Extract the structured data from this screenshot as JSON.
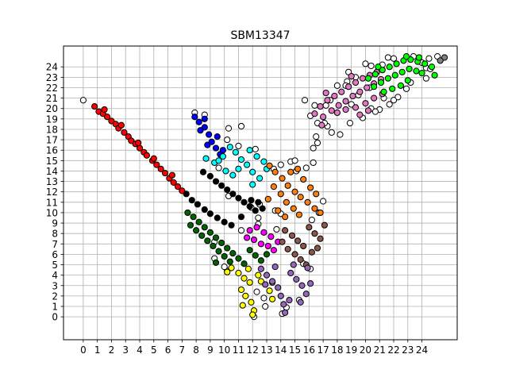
{
  "chart_data": {
    "type": "scatter",
    "title": "SBM13347",
    "xlabel": "",
    "ylabel": "",
    "xlim": [
      -1.4,
      26.5
    ],
    "ylim": [
      -2.2,
      26.0
    ],
    "x_ticks": [
      0,
      1,
      2,
      3,
      4,
      5,
      6,
      7,
      8,
      9,
      10,
      11,
      12,
      13,
      14,
      15,
      16,
      17,
      18,
      19,
      20,
      21,
      22,
      23,
      24
    ],
    "y_ticks": [
      0,
      1,
      2,
      3,
      4,
      5,
      6,
      7,
      8,
      9,
      10,
      11,
      12,
      13,
      14,
      15,
      16,
      17,
      18,
      19,
      20,
      21,
      22,
      23,
      24
    ],
    "grid": true,
    "legend": "none",
    "marker": "circle",
    "marker_edge_color": "#000000",
    "unassigned_color": "#ffffff",
    "clusters": [
      {
        "color": "#ff0000",
        "points": [
          [
            0.8,
            20.2
          ],
          [
            1.1,
            19.7
          ],
          [
            1.4,
            19.5
          ],
          [
            1.7,
            19.2
          ],
          [
            2.0,
            18.8
          ],
          [
            2.3,
            18.5
          ],
          [
            2.5,
            18.1
          ],
          [
            2.9,
            17.7
          ],
          [
            3.2,
            17.3
          ],
          [
            3.4,
            16.9
          ],
          [
            3.7,
            16.6
          ],
          [
            4.0,
            16.2
          ],
          [
            4.3,
            15.8
          ],
          [
            4.5,
            15.5
          ],
          [
            4.9,
            15.0
          ],
          [
            5.2,
            14.6
          ],
          [
            5.5,
            14.2
          ],
          [
            5.8,
            13.8
          ],
          [
            6.1,
            13.3
          ],
          [
            6.4,
            12.9
          ],
          [
            6.7,
            12.5
          ],
          [
            7.0,
            12.1
          ],
          [
            1.5,
            19.9
          ],
          [
            2.7,
            18.4
          ],
          [
            3.9,
            16.7
          ],
          [
            5.0,
            15.2
          ],
          [
            6.3,
            13.6
          ]
        ]
      },
      {
        "color": "#0000ff",
        "points": [
          [
            7.9,
            19.2
          ],
          [
            8.2,
            18.7
          ],
          [
            8.6,
            18.2
          ],
          [
            8.9,
            17.5
          ],
          [
            8.3,
            17.9
          ],
          [
            9.1,
            16.8
          ],
          [
            9.4,
            16.2
          ],
          [
            8.8,
            16.5
          ],
          [
            9.7,
            15.6
          ],
          [
            9.5,
            17.3
          ],
          [
            8.6,
            19.0
          ],
          [
            9.9,
            16.0
          ]
        ]
      },
      {
        "color": "#00ffff",
        "points": [
          [
            8.7,
            15.2
          ],
          [
            9.3,
            14.8
          ],
          [
            9.9,
            15.4
          ],
          [
            10.4,
            16.3
          ],
          [
            10.8,
            15.8
          ],
          [
            11.2,
            15.1
          ],
          [
            11.6,
            14.6
          ],
          [
            12.0,
            13.9
          ],
          [
            12.5,
            13.3
          ],
          [
            11.0,
            14.2
          ],
          [
            10.1,
            14.0
          ],
          [
            12.3,
            15.4
          ],
          [
            12.8,
            14.9
          ],
          [
            11.8,
            16.0
          ],
          [
            10.6,
            13.6
          ],
          [
            12.0,
            12.7
          ],
          [
            13.0,
            14.2
          ],
          [
            9.6,
            15.0
          ]
        ]
      },
      {
        "color": "#000000",
        "points": [
          [
            8.5,
            13.9
          ],
          [
            9.0,
            13.5
          ],
          [
            9.4,
            13.0
          ],
          [
            9.8,
            12.6
          ],
          [
            10.2,
            12.2
          ],
          [
            10.6,
            11.8
          ],
          [
            11.0,
            11.4
          ],
          [
            11.4,
            11.0
          ],
          [
            11.8,
            10.6
          ],
          [
            12.2,
            10.2
          ],
          [
            7.3,
            11.8
          ],
          [
            7.7,
            11.2
          ],
          [
            8.1,
            10.8
          ],
          [
            8.6,
            10.3
          ],
          [
            9.0,
            9.9
          ],
          [
            9.5,
            9.5
          ],
          [
            10.0,
            9.1
          ],
          [
            10.5,
            8.8
          ],
          [
            11.2,
            9.6
          ],
          [
            11.9,
            11.2
          ],
          [
            12.4,
            11.0
          ],
          [
            12.7,
            10.4
          ]
        ]
      },
      {
        "color": "#ff7f0e",
        "points": [
          [
            13.2,
            14.5
          ],
          [
            13.6,
            13.9
          ],
          [
            14.1,
            13.3
          ],
          [
            14.5,
            12.6
          ],
          [
            15.0,
            12.0
          ],
          [
            15.4,
            11.5
          ],
          [
            15.9,
            11.0
          ],
          [
            16.4,
            10.4
          ],
          [
            16.8,
            10.0
          ],
          [
            13.5,
            12.5
          ],
          [
            14.0,
            11.8
          ],
          [
            14.4,
            11.0
          ],
          [
            14.9,
            10.4
          ],
          [
            15.3,
            9.8
          ],
          [
            13.8,
            10.2
          ],
          [
            14.3,
            9.6
          ],
          [
            15.6,
            13.2
          ],
          [
            16.1,
            12.4
          ],
          [
            13.1,
            11.3
          ],
          [
            14.7,
            13.9
          ],
          [
            16.5,
            11.8
          ],
          [
            15.2,
            14.2
          ]
        ]
      },
      {
        "color": "#ff00ff",
        "points": [
          [
            11.8,
            8.3
          ],
          [
            12.3,
            8.6
          ],
          [
            12.8,
            8.1
          ],
          [
            13.3,
            7.7
          ],
          [
            12.1,
            7.4
          ],
          [
            12.6,
            7.0
          ],
          [
            13.1,
            6.8
          ],
          [
            13.5,
            6.4
          ],
          [
            11.6,
            7.6
          ],
          [
            13.8,
            7.2
          ]
        ]
      },
      {
        "color": "#8c564b",
        "points": [
          [
            14.3,
            8.3
          ],
          [
            14.8,
            7.8
          ],
          [
            15.2,
            7.3
          ],
          [
            15.6,
            6.8
          ],
          [
            16.0,
            8.6
          ],
          [
            16.4,
            8.0
          ],
          [
            16.8,
            7.5
          ],
          [
            17.1,
            8.8
          ],
          [
            14.5,
            6.5
          ],
          [
            15.0,
            6.0
          ],
          [
            15.4,
            5.5
          ],
          [
            15.8,
            5.0
          ],
          [
            16.2,
            6.2
          ],
          [
            14.1,
            7.2
          ],
          [
            16.6,
            6.6
          ]
        ]
      },
      {
        "color": "#006400",
        "points": [
          [
            7.4,
            10.0
          ],
          [
            7.8,
            9.6
          ],
          [
            8.2,
            9.1
          ],
          [
            8.6,
            8.6
          ],
          [
            9.0,
            8.1
          ],
          [
            9.4,
            7.6
          ],
          [
            9.8,
            7.1
          ],
          [
            10.2,
            6.6
          ],
          [
            10.6,
            6.1
          ],
          [
            11.0,
            5.6
          ],
          [
            11.4,
            5.1
          ],
          [
            7.6,
            8.8
          ],
          [
            8.0,
            8.3
          ],
          [
            8.4,
            7.8
          ],
          [
            8.8,
            7.3
          ],
          [
            9.2,
            6.8
          ],
          [
            9.6,
            6.3
          ],
          [
            10.0,
            5.8
          ],
          [
            10.4,
            5.3
          ],
          [
            11.8,
            6.4
          ],
          [
            12.2,
            5.9
          ],
          [
            12.6,
            5.4
          ],
          [
            13.0,
            6.0
          ],
          [
            9.4,
            5.2
          ]
        ]
      },
      {
        "color": "#ffff00",
        "points": [
          [
            10.5,
            4.7
          ],
          [
            11.0,
            4.2
          ],
          [
            11.4,
            3.7
          ],
          [
            11.8,
            3.3
          ],
          [
            11.2,
            2.6
          ],
          [
            11.5,
            2.0
          ],
          [
            11.9,
            1.4
          ],
          [
            12.1,
            0.6
          ],
          [
            12.4,
            4.0
          ],
          [
            13.2,
            2.5
          ],
          [
            13.4,
            1.7
          ],
          [
            12.6,
            3.4
          ],
          [
            11.7,
            4.6
          ],
          [
            12.0,
            0.2
          ],
          [
            10.2,
            4.3
          ],
          [
            11.3,
            1.1
          ]
        ]
      },
      {
        "color": "#9467bd",
        "points": [
          [
            12.6,
            4.6
          ],
          [
            13.0,
            4.0
          ],
          [
            13.4,
            3.4
          ],
          [
            13.8,
            2.8
          ],
          [
            14.0,
            2.0
          ],
          [
            14.2,
            1.2
          ],
          [
            14.3,
            0.4
          ],
          [
            14.7,
            4.2
          ],
          [
            15.1,
            3.6
          ],
          [
            15.5,
            3.0
          ],
          [
            15.8,
            2.2
          ],
          [
            15.4,
            1.4
          ],
          [
            14.9,
            5.0
          ],
          [
            15.9,
            4.7
          ],
          [
            13.6,
            4.8
          ],
          [
            14.6,
            1.6
          ],
          [
            16.1,
            3.2
          ],
          [
            12.9,
            3.1
          ]
        ]
      },
      {
        "color": "#e377c2",
        "points": [
          [
            16.4,
            19.5
          ],
          [
            16.8,
            20.2
          ],
          [
            17.3,
            20.8
          ],
          [
            17.8,
            21.2
          ],
          [
            18.3,
            21.6
          ],
          [
            18.8,
            22.1
          ],
          [
            19.3,
            22.5
          ],
          [
            19.8,
            22.9
          ],
          [
            20.3,
            23.2
          ],
          [
            20.8,
            23.5
          ],
          [
            17.0,
            19.2
          ],
          [
            17.6,
            19.8
          ],
          [
            18.1,
            20.3
          ],
          [
            18.6,
            20.7
          ],
          [
            19.1,
            21.2
          ],
          [
            19.6,
            21.6
          ],
          [
            20.1,
            22.0
          ],
          [
            20.6,
            22.4
          ],
          [
            21.1,
            22.8
          ],
          [
            18.0,
            19.6
          ],
          [
            18.6,
            19.9
          ],
          [
            19.3,
            20.1
          ],
          [
            20.0,
            20.5
          ],
          [
            20.6,
            21.0
          ],
          [
            21.2,
            21.4
          ],
          [
            17.2,
            21.5
          ],
          [
            19.0,
            23.1
          ],
          [
            20.2,
            19.8
          ],
          [
            19.6,
            19.4
          ],
          [
            16.9,
            18.4
          ]
        ]
      },
      {
        "color": "#00ff00",
        "points": [
          [
            20.2,
            22.9
          ],
          [
            20.7,
            23.3
          ],
          [
            21.2,
            23.7
          ],
          [
            21.7,
            24.0
          ],
          [
            22.2,
            24.3
          ],
          [
            22.7,
            24.6
          ],
          [
            23.2,
            24.7
          ],
          [
            23.7,
            24.5
          ],
          [
            24.2,
            24.3
          ],
          [
            24.7,
            24.0
          ],
          [
            20.6,
            22.1
          ],
          [
            21.1,
            22.5
          ],
          [
            21.6,
            22.9
          ],
          [
            22.1,
            23.2
          ],
          [
            22.6,
            23.5
          ],
          [
            23.1,
            23.8
          ],
          [
            23.6,
            23.6
          ],
          [
            21.3,
            21.6
          ],
          [
            21.9,
            21.9
          ],
          [
            22.5,
            22.2
          ],
          [
            23.0,
            22.7
          ],
          [
            24.0,
            23.4
          ],
          [
            20.9,
            24.0
          ],
          [
            22.9,
            25.0
          ],
          [
            23.8,
            24.9
          ],
          [
            24.9,
            23.2
          ]
        ]
      },
      {
        "color": "#808080",
        "points": [
          [
            25.6,
            24.9
          ],
          [
            25.3,
            24.6
          ]
        ]
      }
    ],
    "unassigned_points": [
      [
        0,
        20.8
      ],
      [
        7.9,
        19.6
      ],
      [
        8.6,
        19.4
      ],
      [
        10.3,
        18.1
      ],
      [
        11.2,
        18.3
      ],
      [
        11.0,
        16.4
      ],
      [
        10.2,
        17.0
      ],
      [
        12.2,
        16.1
      ],
      [
        9.6,
        14.3
      ],
      [
        10.3,
        11.6
      ],
      [
        11.9,
        10.5
      ],
      [
        12.5,
        10.8
      ],
      [
        13.5,
        14.2
      ],
      [
        14.0,
        14.6
      ],
      [
        14.7,
        14.9
      ],
      [
        15.1,
        14.0
      ],
      [
        15.8,
        14.3
      ],
      [
        16.3,
        14.8
      ],
      [
        17.0,
        11.1
      ],
      [
        16.7,
        10.0
      ],
      [
        16.2,
        9.3
      ],
      [
        15.0,
        15.0
      ],
      [
        13.6,
        10.2
      ],
      [
        14.0,
        9.9
      ],
      [
        12.4,
        8.9
      ],
      [
        13.7,
        8.4
      ],
      [
        12.4,
        9.5
      ],
      [
        11.2,
        8.3
      ],
      [
        15.6,
        5.1
      ],
      [
        16.1,
        4.6
      ],
      [
        15.3,
        1.6
      ],
      [
        14.1,
        0.3
      ],
      [
        14.4,
        0.9
      ],
      [
        12.1,
        0.0
      ],
      [
        12.8,
        1.8
      ],
      [
        12.9,
        1.0
      ],
      [
        12.3,
        2.4
      ],
      [
        10.2,
        4.4
      ],
      [
        10.0,
        4.8
      ],
      [
        9.3,
        5.6
      ],
      [
        9.3,
        7.2
      ],
      [
        13.4,
        3.3
      ],
      [
        16.6,
        16.7
      ],
      [
        16.5,
        17.3
      ],
      [
        16.1,
        19.3
      ],
      [
        16.6,
        18.6
      ],
      [
        17.3,
        18.3
      ],
      [
        17.6,
        17.7
      ],
      [
        17.1,
        18.6
      ],
      [
        15.7,
        20.8
      ],
      [
        16.4,
        20.3
      ],
      [
        18.7,
        22.6
      ],
      [
        19.5,
        21.3
      ],
      [
        19.8,
        19.1
      ],
      [
        20.4,
        20.0
      ],
      [
        21.0,
        19.9
      ],
      [
        21.3,
        21.0
      ],
      [
        20.3,
        22.0
      ],
      [
        21.7,
        20.4
      ],
      [
        22.3,
        21.1
      ],
      [
        18.6,
        22.2
      ],
      [
        19.3,
        23.0
      ],
      [
        18.0,
        22.2
      ],
      [
        17.5,
        20.8
      ],
      [
        20.4,
        24.1
      ],
      [
        21.2,
        24.2
      ],
      [
        23.4,
        25.0
      ],
      [
        24.5,
        24.8
      ],
      [
        24.3,
        23.9
      ],
      [
        24.0,
        24.4
      ],
      [
        25.1,
        25.0
      ],
      [
        24.6,
        23.8
      ],
      [
        24.3,
        22.9
      ],
      [
        22.0,
        20.8
      ],
      [
        23.2,
        22.5
      ],
      [
        22.9,
        21.9
      ],
      [
        19.0,
        20.4
      ],
      [
        20.7,
        19.7
      ],
      [
        22.0,
        24.8
      ],
      [
        21.6,
        24.9
      ],
      [
        18.8,
        23.5
      ],
      [
        20.0,
        24.3
      ],
      [
        17.2,
        20.3
      ],
      [
        16.3,
        16.2
      ],
      [
        18.2,
        17.5
      ],
      [
        18.9,
        18.6
      ]
    ]
  }
}
